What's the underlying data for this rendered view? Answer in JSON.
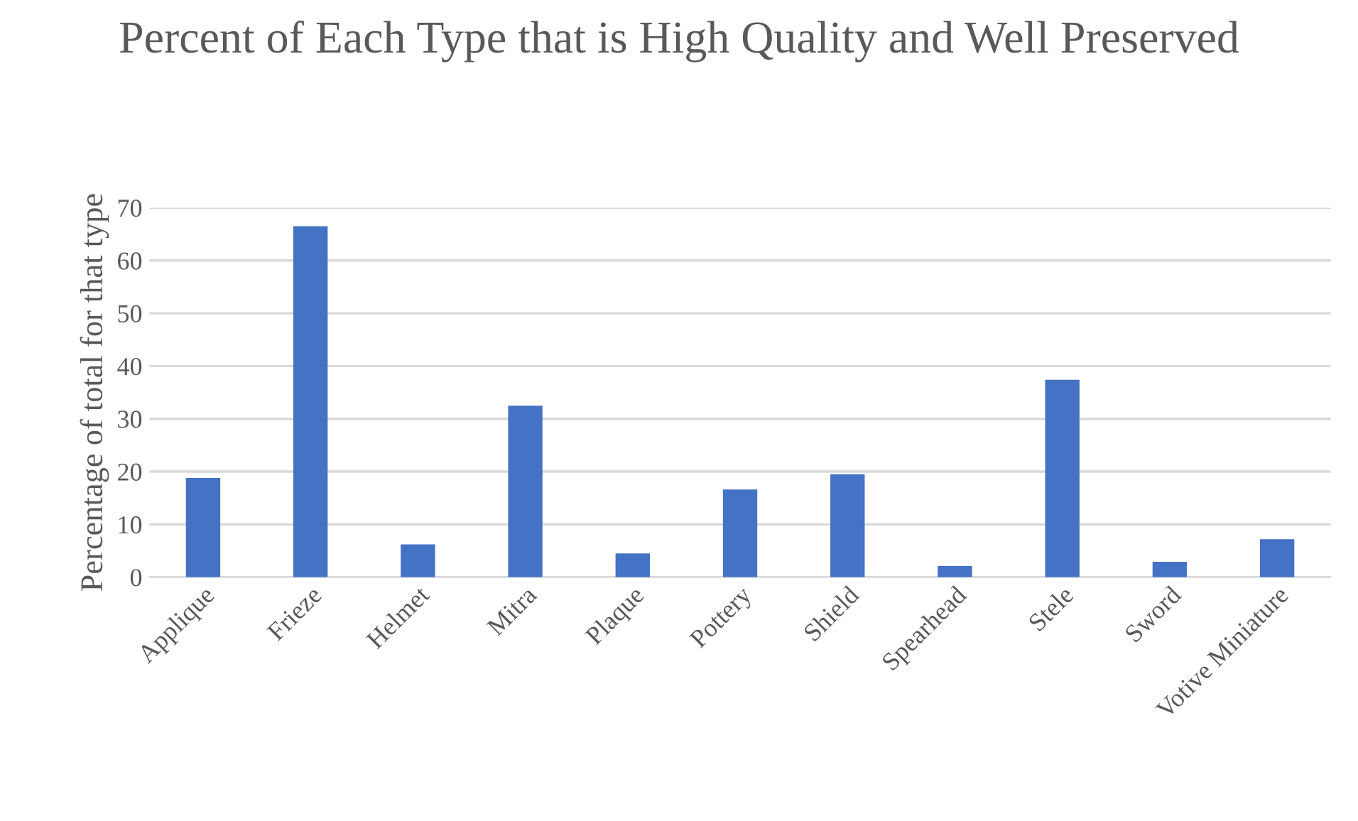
{
  "chart_data": {
    "type": "bar",
    "title": "Percent of Each Type that is High Quality and Well Preserved",
    "ylabel": "Percentage of total for that type",
    "categories": [
      "Applique",
      "Frieze",
      "Helmet",
      "Mitra",
      "Plaque",
      "Pottery",
      "Shield",
      "Spearhead",
      "Stele",
      "Sword",
      "Votive Miniature"
    ],
    "values": [
      18.8,
      66.5,
      6.2,
      32.5,
      4.5,
      16.6,
      19.5,
      2.1,
      37.4,
      2.9,
      7.2
    ],
    "color": "#4472c4",
    "ylim": [
      0,
      70
    ],
    "yticks": [
      0,
      10,
      20,
      30,
      40,
      50,
      60,
      70
    ],
    "grid": "y"
  }
}
